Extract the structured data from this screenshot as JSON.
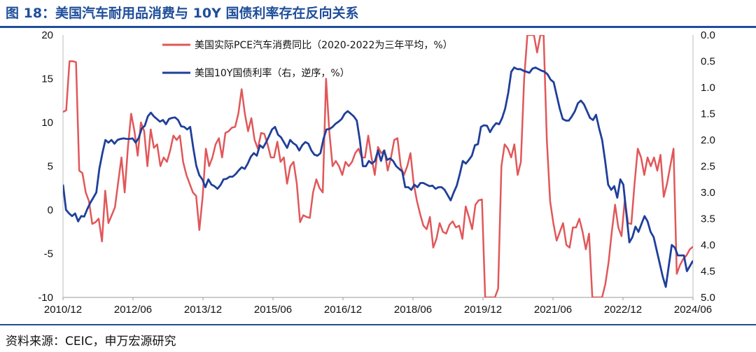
{
  "header": {
    "title": "图 18：美国汽车耐用品消费与 10Y 国债利率存在反向关系"
  },
  "footer": {
    "source": "资料来源：CEIC，申万宏源研究"
  },
  "colors": {
    "series1": "#e15759",
    "series2": "#1f3f9a",
    "title": "#1f4e9a"
  },
  "chart_data": {
    "type": "line",
    "title": "图 18：美国汽车耐用品消费与 10Y 国债利率存在反向关系",
    "x_tick_labels": [
      "2010/12",
      "2012/06",
      "2013/12",
      "2015/06",
      "2016/12",
      "2018/06",
      "2019/12",
      "2021/06",
      "2022/12",
      "2024/06"
    ],
    "x_range": [
      "2010-12",
      "2024-06"
    ],
    "y_left": {
      "min": -10,
      "max": 20,
      "ticks": [
        -10,
        -5,
        0,
        5,
        10,
        15,
        20
      ]
    },
    "y_right": {
      "min": 0,
      "max": 5,
      "inverted": true,
      "ticks": [
        "0.0",
        "0.5",
        "1.0",
        "1.5",
        "2.0",
        "2.5",
        "3.0",
        "3.5",
        "4.0",
        "4.5",
        "5.0"
      ]
    },
    "legend": {
      "position": "top-center",
      "entries": [
        "美国实际PCE汽车消费同比（2020-2022为三年平均，%）",
        "美国10Y国债利率（右，逆序，%）"
      ]
    },
    "series": [
      {
        "name": "美国实际PCE汽车消费同比（2020-2022为三年平均，%）",
        "axis": "left",
        "values": [
          11.2,
          11.4,
          17.0,
          17.0,
          16.9,
          4.5,
          4.2,
          2.0,
          1.0,
          -1.6,
          -1.4,
          -1.0,
          -3.6,
          2.2,
          -1.5,
          -0.6,
          0.3,
          3.2,
          6.0,
          2.0,
          7.2,
          11.0,
          9.0,
          6.2,
          10.0,
          9.0,
          5.0,
          9.2,
          7.1,
          7.5,
          5.0,
          6.0,
          5.5,
          6.8,
          8.5,
          8.0,
          8.5,
          5.5,
          4.0,
          3.0,
          2.0,
          1.6,
          -2.3,
          1.5,
          7.0,
          5.0,
          6.0,
          7.5,
          8.2,
          6.0,
          8.8,
          9.0,
          9.4,
          9.5,
          11.0,
          13.8,
          11.0,
          9.0,
          10.5,
          8.0,
          7.0,
          8.8,
          8.7,
          7.5,
          6.0,
          6.0,
          7.8,
          5.5,
          6.0,
          3.0,
          5.0,
          5.5,
          3.0,
          -1.4,
          -0.6,
          -0.8,
          -0.9,
          2.0,
          3.5,
          2.5,
          2.0,
          15.0,
          9.0,
          5.0,
          5.6,
          5.0,
          4.0,
          5.5,
          5.0,
          5.5,
          6.5,
          7.0,
          6.0,
          6.0,
          8.5,
          6.0,
          4.0,
          7.2,
          6.5,
          6.8,
          4.5,
          6.0,
          8.0,
          8.2,
          5.0,
          4.0,
          5.0,
          6.5,
          3.0,
          1.0,
          -0.5,
          -1.8,
          -2.2,
          -0.8,
          -4.3,
          -3.3,
          -1.5,
          -2.5,
          -2.7,
          -1.7,
          -1.3,
          -2.0,
          -1.8,
          -3.3,
          0.4,
          -0.8,
          -2.2,
          0.6,
          1.1,
          1.2,
          -10.0,
          -10.0,
          -10.0,
          -10.0,
          -9.0,
          5.0,
          7.5,
          7.0,
          6.0,
          7.5,
          4.0,
          5.5,
          15.0,
          20.0,
          20.0,
          20.0,
          18.0,
          20.0,
          20.0,
          8.0,
          1.0,
          -1.5,
          -3.5,
          -2.5,
          -1.5,
          -4.0,
          -4.3,
          -2.0,
          -2.0,
          -1.0,
          -2.5,
          -4.5,
          -2.7,
          -10.0,
          -10.0,
          -10.0,
          -10.0,
          -8.5,
          -6.0,
          -2.5,
          0.6,
          -2.0,
          -3.0,
          1.2,
          -1.5,
          -1.6,
          3.0,
          7.0,
          6.0,
          4.0,
          6.0,
          5.0,
          6.0,
          4.5,
          6.3,
          1.5,
          3.0,
          5.0,
          7.0,
          -7.3,
          -6.3,
          -5.6,
          -5.2,
          -4.5,
          -4.2
        ]
      },
      {
        "name": "美国10Y国债利率（右，逆序，%）",
        "axis": "right",
        "values": [
          2.85,
          3.33,
          3.4,
          3.45,
          3.4,
          3.55,
          3.45,
          3.46,
          3.32,
          3.2,
          3.1,
          3.0,
          2.55,
          2.25,
          2.0,
          2.05,
          2.0,
          2.07,
          2.0,
          1.98,
          1.97,
          1.98,
          1.98,
          1.97,
          2.05,
          1.96,
          1.78,
          1.73,
          1.55,
          1.48,
          1.55,
          1.6,
          1.65,
          1.62,
          1.7,
          1.6,
          1.58,
          1.57,
          1.62,
          1.74,
          1.75,
          1.8,
          1.75,
          2.15,
          2.49,
          2.67,
          2.75,
          2.9,
          2.75,
          2.85,
          2.88,
          2.93,
          2.86,
          2.75,
          2.74,
          2.7,
          2.7,
          2.65,
          2.58,
          2.52,
          2.55,
          2.45,
          2.32,
          2.25,
          2.3,
          2.1,
          2.15,
          2.05,
          1.93,
          1.8,
          1.75,
          1.9,
          1.95,
          2.05,
          2.15,
          2.0,
          2.06,
          2.1,
          2.2,
          2.1,
          2.04,
          2.07,
          2.2,
          2.28,
          2.3,
          2.25,
          1.98,
          1.8,
          1.79,
          1.75,
          1.69,
          1.65,
          1.6,
          1.5,
          1.45,
          1.5,
          1.55,
          1.63,
          2.0,
          2.5,
          2.5,
          2.4,
          2.45,
          2.4,
          2.2,
          2.4,
          2.2,
          2.38,
          2.35,
          2.4,
          2.5,
          2.55,
          2.6,
          2.9,
          2.9,
          2.95,
          2.85,
          2.9,
          2.82,
          2.82,
          2.85,
          2.88,
          2.87,
          2.93,
          2.9,
          2.9,
          2.95,
          3.05,
          3.15,
          3.0,
          2.87,
          2.65,
          2.4,
          2.45,
          2.38,
          2.3,
          2.1,
          2.08,
          1.75,
          1.72,
          1.73,
          1.85,
          1.75,
          1.68,
          1.7,
          1.58,
          1.4,
          1.1,
          0.7,
          0.62,
          0.65,
          0.65,
          0.68,
          0.7,
          0.72,
          0.64,
          0.62,
          0.65,
          0.68,
          0.7,
          0.75,
          0.85,
          0.9,
          1.15,
          1.4,
          1.6,
          1.63,
          1.63,
          1.55,
          1.45,
          1.3,
          1.25,
          1.32,
          1.45,
          1.58,
          1.62,
          1.52,
          1.78,
          2.0,
          2.4,
          2.85,
          2.95,
          2.88,
          3.1,
          2.75,
          2.85,
          3.4,
          3.95,
          3.85,
          3.65,
          3.75,
          3.6,
          3.45,
          3.55,
          3.75,
          3.85,
          4.1,
          4.35,
          4.6,
          4.8,
          4.4,
          4.0,
          4.05,
          4.2,
          4.2,
          4.2,
          4.5,
          4.4,
          4.3
        ]
      }
    ]
  }
}
